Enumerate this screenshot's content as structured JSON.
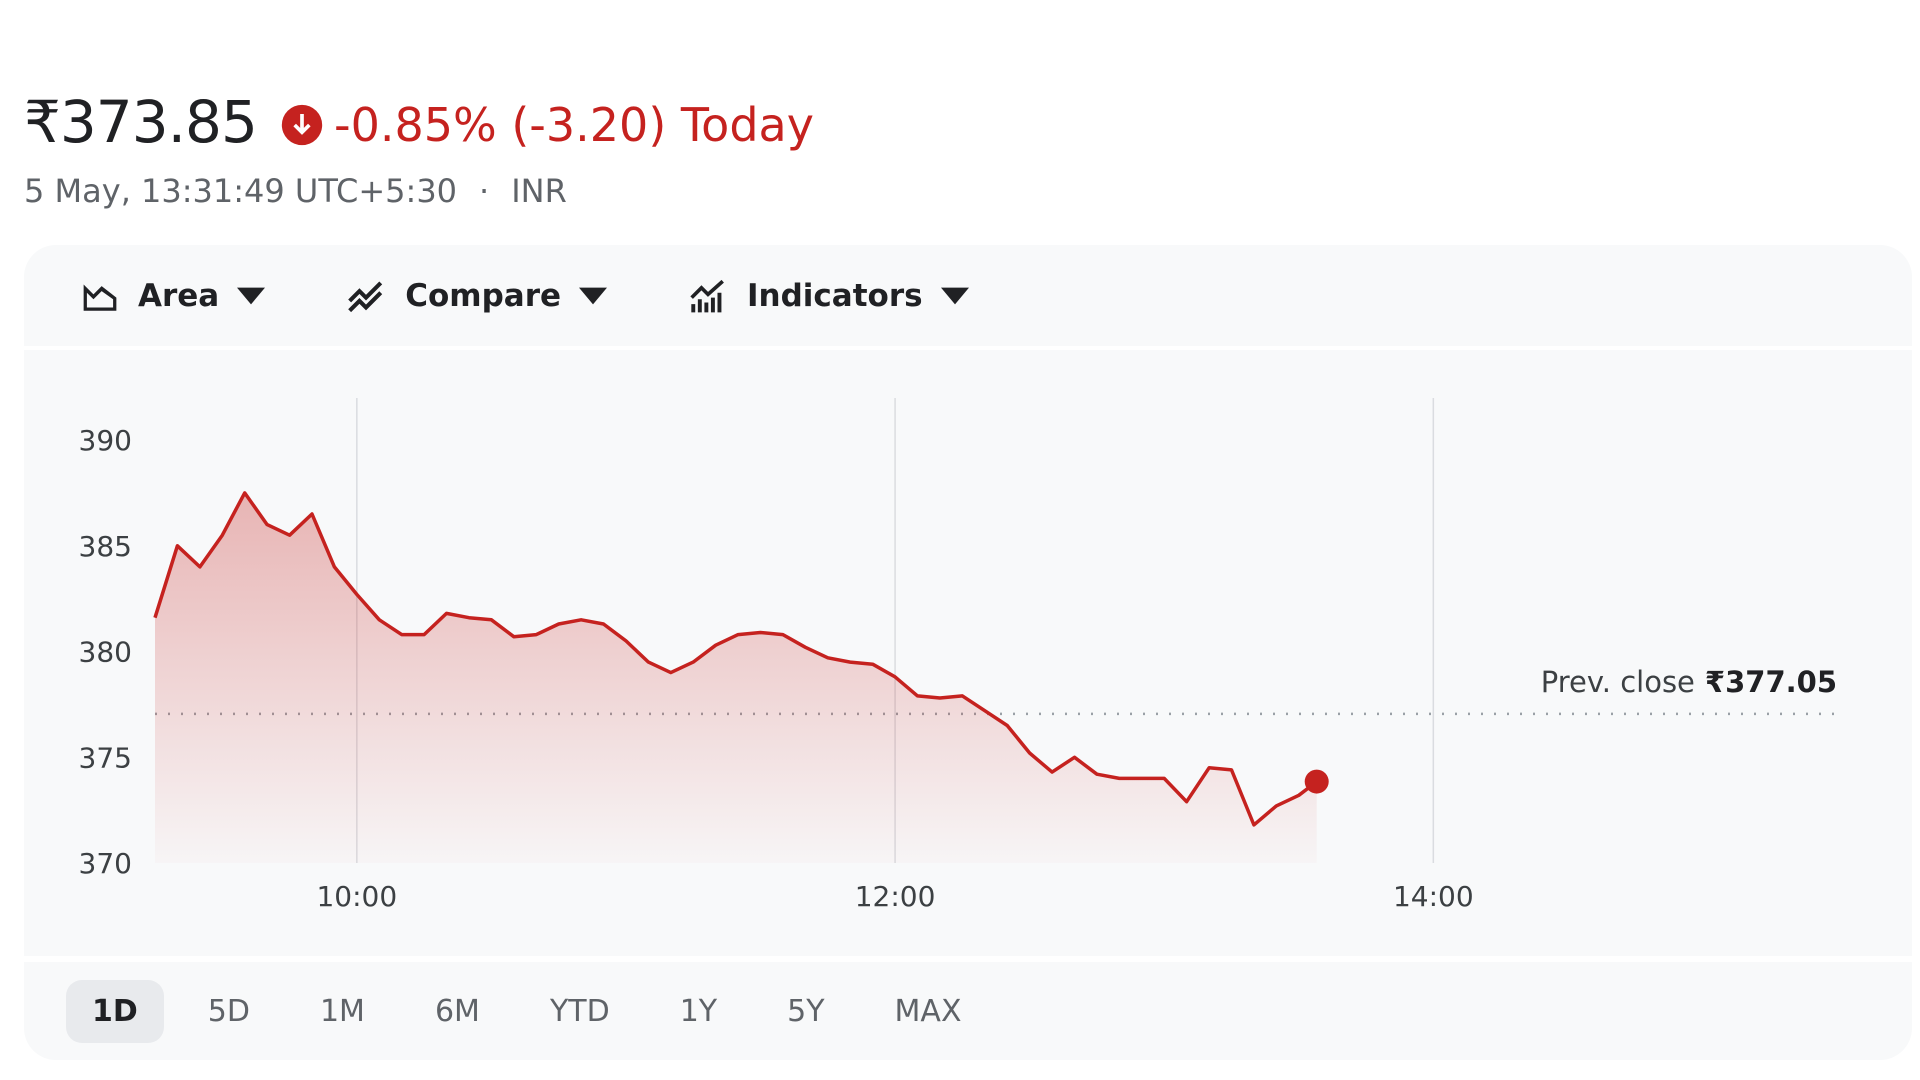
{
  "header": {
    "price": "₹373.85",
    "change": "-0.85% (-3.20) Today",
    "timestamp": "5 May, 13:31:49 UTC+5:30",
    "separator": "·",
    "currency": "INR"
  },
  "toolbar": [
    "Area",
    "Compare",
    "Indicators"
  ],
  "ranges": {
    "items": [
      "1D",
      "5D",
      "1M",
      "6M",
      "YTD",
      "1Y",
      "5Y",
      "MAX"
    ],
    "selected": "1D"
  },
  "chart_data": {
    "type": "area",
    "color": "#c5221f",
    "x": [
      "09:15",
      "09:20",
      "09:25",
      "09:30",
      "09:35",
      "09:40",
      "09:45",
      "09:50",
      "09:55",
      "10:00",
      "10:05",
      "10:10",
      "10:15",
      "10:20",
      "10:25",
      "10:30",
      "10:35",
      "10:40",
      "10:45",
      "10:50",
      "10:55",
      "11:00",
      "11:05",
      "11:10",
      "11:15",
      "11:20",
      "11:25",
      "11:30",
      "11:35",
      "11:40",
      "11:45",
      "11:50",
      "11:55",
      "12:00",
      "12:05",
      "12:10",
      "12:15",
      "12:20",
      "12:25",
      "12:30",
      "12:35",
      "12:40",
      "12:45",
      "12:50",
      "12:55",
      "13:00",
      "13:05",
      "13:10",
      "13:15",
      "13:20",
      "13:25",
      "13:30",
      "13:34"
    ],
    "values": [
      381.6,
      385.0,
      384.0,
      385.5,
      387.5,
      386.0,
      385.5,
      386.5,
      384.0,
      382.7,
      381.5,
      380.8,
      380.8,
      381.8,
      381.6,
      381.5,
      380.7,
      380.8,
      381.3,
      381.5,
      381.3,
      380.5,
      379.5,
      379.0,
      379.5,
      380.3,
      380.8,
      380.9,
      380.8,
      380.2,
      379.7,
      379.5,
      379.4,
      378.8,
      377.9,
      377.8,
      377.9,
      377.2,
      376.5,
      375.2,
      374.3,
      375.0,
      374.2,
      374.0,
      374.0,
      374.0,
      372.9,
      374.5,
      374.4,
      371.8,
      372.7,
      373.2,
      373.85
    ],
    "xlim": [
      "09:15",
      "15:30"
    ],
    "xticks": [
      "10:00",
      "12:00",
      "14:00"
    ],
    "ylim": [
      370,
      390
    ],
    "yticks": [
      370,
      375,
      380,
      385,
      390
    ],
    "prev_close": {
      "text": "Prev. close",
      "value": 377.05,
      "label": "₹377.05"
    }
  }
}
